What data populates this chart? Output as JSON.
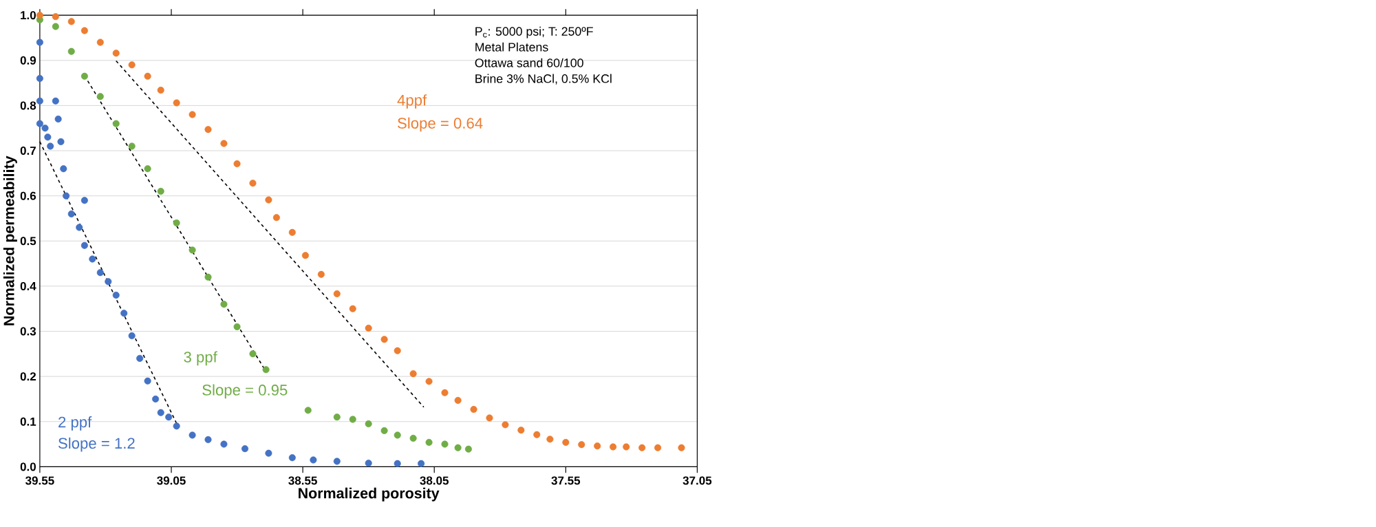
{
  "chart_data": {
    "type": "scatter",
    "xlabel": "Normalized porosity",
    "ylabel": "Normalized permeability",
    "xlim": [
      39.55,
      37.05
    ],
    "ylim": [
      0,
      1
    ],
    "xticks": [
      39.55,
      39.05,
      38.55,
      38.05,
      37.55,
      37.05
    ],
    "yticks": [
      {
        "value": 0,
        "label": "0.0"
      },
      0.1,
      0.2,
      0.3,
      0.4,
      0.5,
      0.6,
      0.7,
      0.8,
      0.9,
      {
        "value": 1,
        "label": "1.0"
      }
    ],
    "grid": "y",
    "marker": "circle",
    "annotations": [
      "Slope = 1.2",
      "Slope = 0.95",
      "Slope = 0.64",
      "P$_{c}$: 5000 psi; T: 250ºF",
      "Metal Platens",
      "Ottawa sand 60/100",
      "Brine 3% NaCl, 0.5% KCl"
    ],
    "series": [
      {
        "name": "2 ppf",
        "color": "#4472c4",
        "x": [
          39.55,
          39.55,
          39.55,
          39.55,
          39.53,
          39.52,
          39.51,
          39.49,
          39.48,
          39.47,
          39.46,
          39.45,
          39.43,
          39.4,
          39.38,
          39.38,
          39.35,
          39.32,
          39.29,
          39.26,
          39.23,
          39.2,
          39.17,
          39.14,
          39.11,
          39.09,
          39.06,
          39.03,
          38.97,
          38.91,
          38.85,
          38.77,
          38.68,
          38.59,
          38.51,
          38.42,
          38.3,
          38.19,
          38.1
        ],
        "values": [
          0.94,
          0.86,
          0.81,
          0.76,
          0.75,
          0.73,
          0.71,
          0.81,
          0.77,
          0.72,
          0.66,
          0.6,
          0.56,
          0.53,
          0.59,
          0.49,
          0.46,
          0.43,
          0.41,
          0.38,
          0.34,
          0.29,
          0.24,
          0.19,
          0.15,
          0.12,
          0.11,
          0.09,
          0.07,
          0.06,
          0.05,
          0.04,
          0.03,
          0.02,
          0.015,
          0.012,
          0.008,
          0.007,
          0.007
        ]
      },
      {
        "name": "3 ppf",
        "color": "#70ad47",
        "x": [
          39.55,
          39.49,
          39.43,
          39.38,
          39.32,
          39.26,
          39.2,
          39.14,
          39.09,
          39.03,
          38.97,
          38.91,
          38.85,
          38.8,
          38.74,
          38.69,
          38.53,
          38.42,
          38.36,
          38.3,
          38.24,
          38.19,
          38.13,
          38.07,
          38.01,
          37.96,
          37.92
        ],
        "values": [
          0.99,
          0.975,
          0.92,
          0.865,
          0.82,
          0.76,
          0.71,
          0.66,
          0.61,
          0.54,
          0.48,
          0.42,
          0.36,
          0.31,
          0.25,
          0.215,
          0.125,
          0.11,
          0.105,
          0.095,
          0.08,
          0.07,
          0.063,
          0.054,
          0.05,
          0.042,
          0.039
        ]
      },
      {
        "name": "4ppf",
        "color": "#ed7d31",
        "x": [
          39.55,
          39.49,
          39.43,
          39.38,
          39.32,
          39.26,
          39.2,
          39.14,
          39.09,
          39.03,
          38.97,
          38.91,
          38.85,
          38.8,
          38.74,
          38.68,
          38.65,
          38.59,
          38.54,
          38.48,
          38.42,
          38.36,
          38.3,
          38.24,
          38.19,
          38.13,
          38.07,
          38.01,
          37.96,
          37.9,
          37.84,
          37.78,
          37.72,
          37.66,
          37.61,
          37.55,
          37.49,
          37.43,
          37.37,
          37.32,
          37.26,
          37.2,
          37.11
        ],
        "values": [
          1.0,
          0.997,
          0.986,
          0.966,
          0.94,
          0.916,
          0.89,
          0.865,
          0.834,
          0.806,
          0.78,
          0.747,
          0.716,
          0.671,
          0.628,
          0.591,
          0.552,
          0.519,
          0.468,
          0.426,
          0.383,
          0.35,
          0.307,
          0.282,
          0.257,
          0.206,
          0.189,
          0.164,
          0.147,
          0.127,
          0.108,
          0.093,
          0.081,
          0.071,
          0.061,
          0.054,
          0.049,
          0.046,
          0.044,
          0.044,
          0.042,
          0.042,
          0.042
        ]
      },
      {
        "type": "line",
        "color": "#000000",
        "line_style": "dashed",
        "marker": "none",
        "x": [
          39.55,
          39.03
        ],
        "values": [
          0.72,
          0.096
        ]
      },
      {
        "type": "line",
        "color": "#000000",
        "line_style": "dashed",
        "marker": "none",
        "x": [
          39.38,
          38.69
        ],
        "values": [
          0.866,
          0.211
        ]
      },
      {
        "type": "line",
        "color": "#000000",
        "line_style": "dashed",
        "marker": "none",
        "x": [
          39.26,
          38.09
        ],
        "values": [
          0.899,
          0.132
        ]
      }
    ]
  }
}
